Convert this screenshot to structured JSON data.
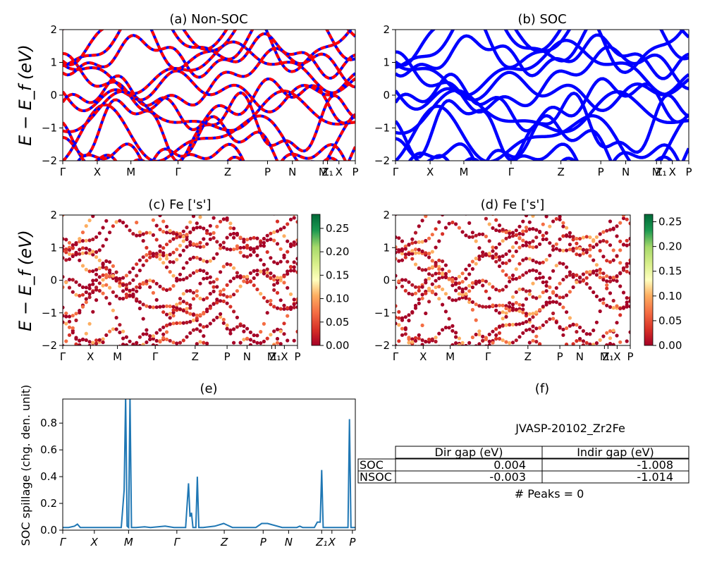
{
  "figure": {
    "panels": [
      {
        "id": "a",
        "title": "(a) Non-SOC",
        "kind": "bands",
        "style": "dashed-red-blue",
        "ylabel": "E − E_f (eV)",
        "colorbar": null
      },
      {
        "id": "b",
        "title": "(b) SOC",
        "kind": "bands",
        "style": "solid-blue",
        "ylabel": "",
        "colorbar": null
      },
      {
        "id": "c",
        "title": "(c)  Fe ['s']",
        "kind": "projected",
        "ylabel": "E − E_f (eV)",
        "colorbar": {
          "ticks": [
            "0.25",
            "0.20",
            "0.15",
            "0.10",
            "0.05",
            "0.00"
          ],
          "max": 0.28
        }
      },
      {
        "id": "d",
        "title": "(d) Fe ['s']",
        "kind": "projected",
        "ylabel": "",
        "colorbar": {
          "ticks": [
            "0.25",
            "0.20",
            "0.15",
            "0.10",
            "0.05",
            "0.00"
          ],
          "max": 0.265
        }
      }
    ],
    "spillage_title": "(e)",
    "table_panel_title": "(f)",
    "band_yticks": [
      "2",
      "1",
      "0",
      "−1",
      "−2"
    ],
    "kpath_labels": [
      "Γ",
      "X",
      "M",
      "Γ",
      "Z",
      "P",
      "N",
      "M",
      "Z₁",
      "X",
      "P"
    ],
    "spillage_ylabel": "SOC spillage (chg. den. unit)",
    "spillage_yticks": [
      "0.8",
      "0.6",
      "0.4",
      "0.2",
      "0.0"
    ],
    "spillage_xticks": [
      "Γ",
      "X",
      "M",
      "Γ",
      "Z",
      "P",
      "N",
      "Z₁",
      "X",
      "P"
    ]
  },
  "info": {
    "material": "JVASP-20102_Zr2Fe",
    "table": {
      "headers": [
        "Dir gap (eV)",
        "Indir gap (eV)"
      ],
      "rows": [
        {
          "label": "SOC",
          "dir": "0.004",
          "indir": "-1.008"
        },
        {
          "label": "NSOC",
          "dir": "-0.003",
          "indir": "-1.014"
        }
      ]
    },
    "peaks": "# Peaks = 0"
  },
  "chart_data": [
    {
      "type": "line",
      "panel": "a",
      "title": "(a) Non-SOC",
      "ylabel": "E − E_f (eV)",
      "ylim": [
        -2,
        2
      ],
      "xticks": [
        "Γ",
        "X",
        "M",
        "Γ",
        "Z",
        "P",
        "N",
        "M",
        "Z₁",
        "X",
        "P"
      ],
      "note": "many electronic bands, red/blue dashed"
    },
    {
      "type": "line",
      "panel": "b",
      "title": "(b) SOC",
      "ylim": [
        -2,
        2
      ],
      "xticks": [
        "Γ",
        "X",
        "M",
        "Γ",
        "Z",
        "P",
        "N",
        "M",
        "Z₁",
        "X",
        "P"
      ]
    },
    {
      "type": "scatter",
      "panel": "c",
      "title": "(c)  Fe ['s']",
      "ylim": [
        -2,
        2
      ],
      "colorbar_range": [
        0,
        0.28
      ]
    },
    {
      "type": "scatter",
      "panel": "d",
      "title": "(d) Fe ['s']",
      "ylim": [
        -2,
        2
      ],
      "colorbar_range": [
        0,
        0.265
      ]
    },
    {
      "type": "line",
      "panel": "e",
      "title": "(e)",
      "ylabel": "SOC spillage (chg. den. unit)",
      "ylim": [
        0,
        0.98
      ],
      "x": [
        0,
        0.02,
        0.04,
        0.05,
        0.06,
        0.1,
        0.15,
        0.2,
        0.21,
        0.215,
        0.22,
        0.225,
        0.23,
        0.235,
        0.24,
        0.245,
        0.25,
        0.28,
        0.3,
        0.35,
        0.38,
        0.4,
        0.42,
        0.43,
        0.435,
        0.44,
        0.445,
        0.45,
        0.455,
        0.46,
        0.465,
        0.47,
        0.475,
        0.48,
        0.5,
        0.52,
        0.55,
        0.56,
        0.58,
        0.6,
        0.66,
        0.68,
        0.7,
        0.75,
        0.8,
        0.81,
        0.82,
        0.86,
        0.87,
        0.88,
        0.885,
        0.89,
        0.9,
        0.95,
        0.975,
        0.98,
        0.985,
        1.0
      ],
      "y": [
        0.02,
        0.02,
        0.03,
        0.045,
        0.02,
        0.02,
        0.02,
        0.02,
        0.3,
        1.0,
        0.03,
        0.02,
        1.0,
        0.02,
        0.02,
        0.02,
        0.02,
        0.025,
        0.02,
        0.03,
        0.02,
        0.02,
        0.02,
        0.35,
        0.1,
        0.13,
        0.02,
        0.02,
        0.02,
        0.4,
        0.02,
        0.02,
        0.02,
        0.02,
        0.025,
        0.03,
        0.05,
        0.04,
        0.02,
        0.02,
        0.02,
        0.05,
        0.05,
        0.02,
        0.02,
        0.03,
        0.02,
        0.02,
        0.06,
        0.06,
        0.45,
        0.02,
        0.02,
        0.02,
        0.02,
        0.83,
        0.02,
        0.02
      ]
    }
  ]
}
